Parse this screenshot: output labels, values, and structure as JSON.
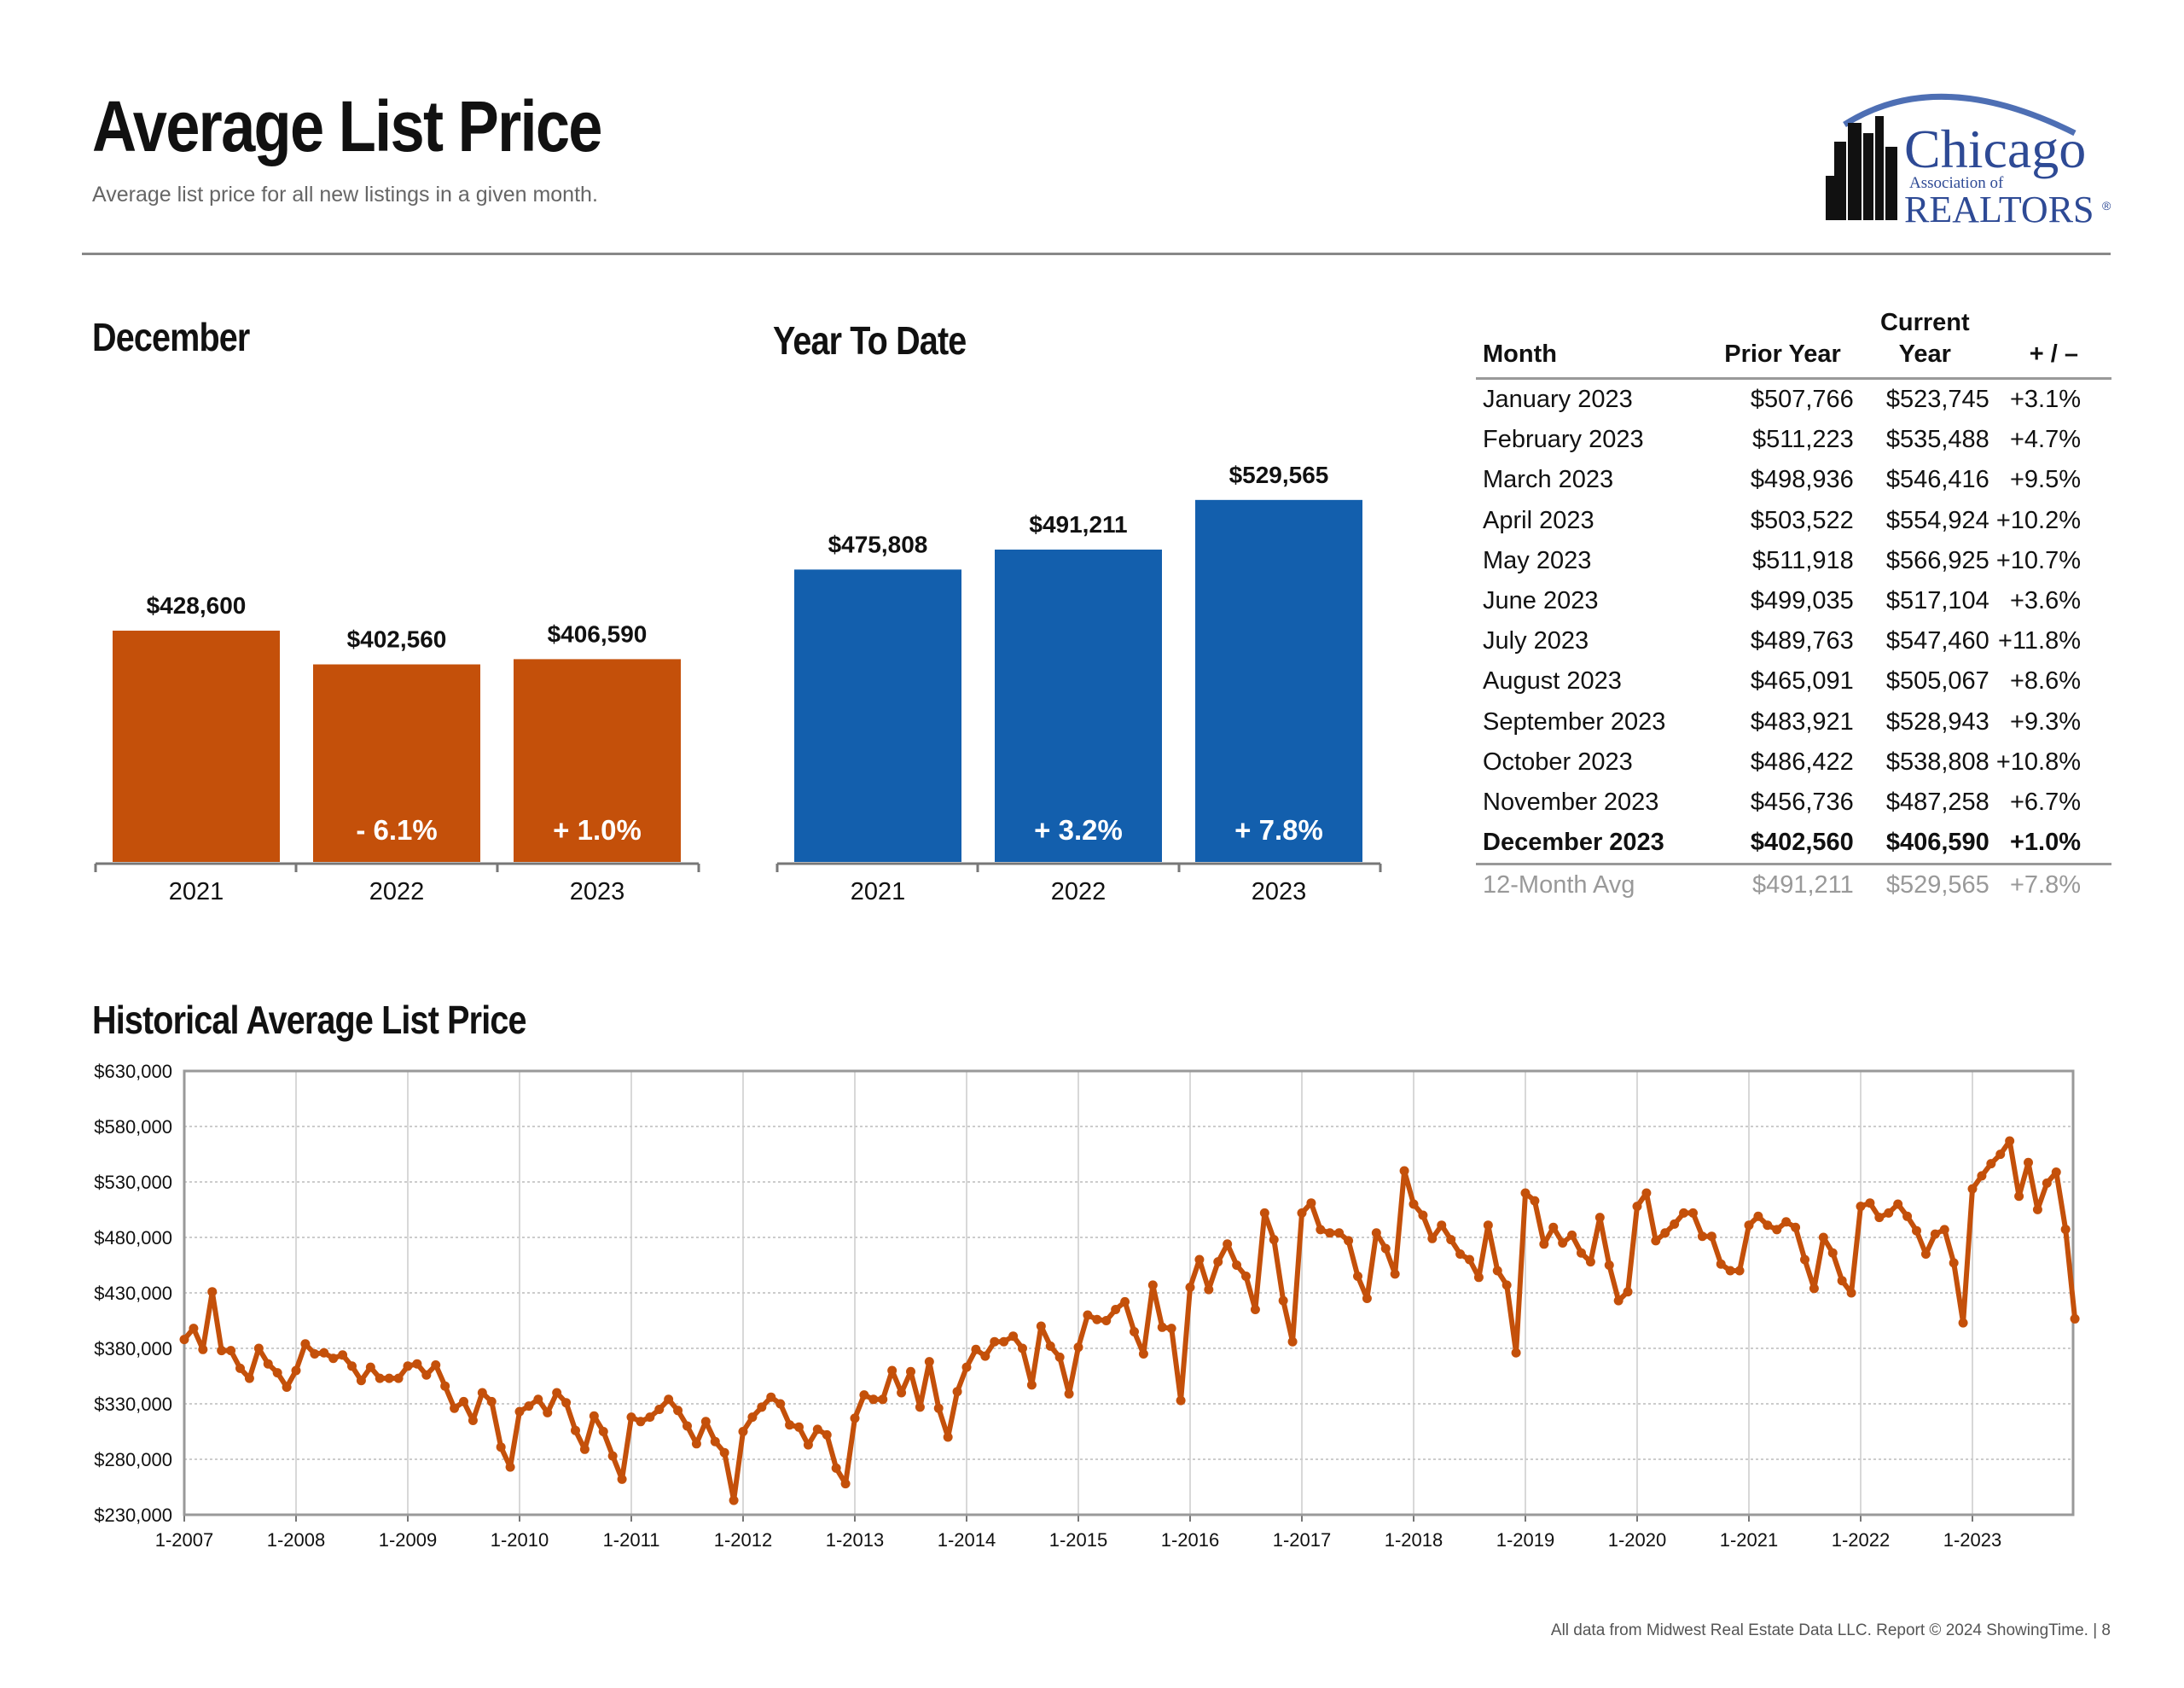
{
  "header": {
    "title": "Average List Price",
    "subtitle": "Average list price for all new listings in a given month."
  },
  "logo": {
    "line1": "Chicago",
    "line2": "Association of",
    "line3": "REALTORS",
    "mark": "®"
  },
  "sections": {
    "december": "December",
    "ytd": "Year To Date",
    "historical": "Historical Average List Price"
  },
  "table": {
    "headers": [
      "Month",
      "Prior Year",
      "Current Year",
      "+ / –"
    ],
    "rows": [
      [
        "January 2023",
        "$507,766",
        "$523,745",
        "+3.1%"
      ],
      [
        "February 2023",
        "$511,223",
        "$535,488",
        "+4.7%"
      ],
      [
        "March 2023",
        "$498,936",
        "$546,416",
        "+9.5%"
      ],
      [
        "April 2023",
        "$503,522",
        "$554,924",
        "+10.2%"
      ],
      [
        "May 2023",
        "$511,918",
        "$566,925",
        "+10.7%"
      ],
      [
        "June 2023",
        "$499,035",
        "$517,104",
        "+3.6%"
      ],
      [
        "July 2023",
        "$489,763",
        "$547,460",
        "+11.8%"
      ],
      [
        "August 2023",
        "$465,091",
        "$505,067",
        "+8.6%"
      ],
      [
        "September 2023",
        "$483,921",
        "$528,943",
        "+9.3%"
      ],
      [
        "October 2023",
        "$486,422",
        "$538,808",
        "+10.8%"
      ],
      [
        "November 2023",
        "$456,736",
        "$487,258",
        "+6.7%"
      ],
      [
        "December 2023",
        "$402,560",
        "$406,590",
        "+1.0%"
      ]
    ],
    "avg_row": [
      "12-Month Avg",
      "$491,211",
      "$529,565",
      "+7.8%"
    ]
  },
  "footer": "All data from Midwest Real Estate Data LLC. Report © 2024 ShowingTime.  |  8",
  "colors": {
    "december": "#c4500a",
    "ytd": "#135fad",
    "line": "#c4500a"
  },
  "chart_data": [
    {
      "type": "bar",
      "title": "December",
      "categories": [
        "2021",
        "2022",
        "2023"
      ],
      "values": [
        428600,
        402560,
        406590
      ],
      "value_labels": [
        "$428,600",
        "$402,560",
        "$406,590"
      ],
      "change_labels": [
        "",
        "- 6.1%",
        "+ 1.0%"
      ],
      "color": "#c4500a"
    },
    {
      "type": "bar",
      "title": "Year To Date",
      "categories": [
        "2021",
        "2022",
        "2023"
      ],
      "values": [
        475808,
        491211,
        529565
      ],
      "value_labels": [
        "$475,808",
        "$491,211",
        "$529,565"
      ],
      "change_labels": [
        "",
        "+ 3.2%",
        "+ 7.8%"
      ],
      "color": "#135fad"
    },
    {
      "type": "line",
      "title": "Historical Average List Price",
      "ylim": [
        230000,
        630000
      ],
      "y_ticks": [
        230000,
        280000,
        330000,
        380000,
        430000,
        480000,
        530000,
        580000,
        630000
      ],
      "y_tick_labels": [
        "$230,000",
        "$280,000",
        "$330,000",
        "$380,000",
        "$430,000",
        "$480,000",
        "$530,000",
        "$580,000",
        "$630,000"
      ],
      "x_tick_labels": [
        "1-2007",
        "1-2008",
        "1-2009",
        "1-2010",
        "1-2011",
        "1-2012",
        "1-2013",
        "1-2014",
        "1-2015",
        "1-2016",
        "1-2017",
        "1-2018",
        "1-2019",
        "1-2020",
        "1-2021",
        "1-2022",
        "1-2023"
      ],
      "x_start": "2007-01",
      "x_end": "2023-12",
      "grid": true,
      "series": [
        {
          "values": [
            388000,
            398000,
            379000,
            431000,
            378000,
            378000,
            362000,
            353000,
            380000,
            366000,
            358000,
            345000,
            360000,
            384000,
            375000,
            376000,
            371000,
            374000,
            364000,
            351000,
            363000,
            353000,
            353000,
            353000,
            364000,
            366000,
            356000,
            365000,
            346000,
            326000,
            332000,
            315000,
            340000,
            332000,
            291000,
            273000,
            323000,
            328000,
            334000,
            322000,
            340000,
            331000,
            306000,
            289000,
            319000,
            305000,
            283000,
            262000,
            318000,
            314000,
            318000,
            325000,
            334000,
            324000,
            310000,
            294000,
            314000,
            296000,
            286000,
            243000,
            305000,
            318000,
            327000,
            336000,
            330000,
            311000,
            309000,
            293000,
            307000,
            302000,
            272000,
            258000,
            317000,
            338000,
            334000,
            334000,
            360000,
            340000,
            359000,
            327000,
            368000,
            326000,
            300000,
            341000,
            363000,
            379000,
            373000,
            386000,
            386000,
            391000,
            380000,
            347000,
            400000,
            382000,
            372000,
            339000,
            381000,
            410000,
            406000,
            405000,
            415000,
            422000,
            395000,
            375000,
            437000,
            399000,
            398000,
            333000,
            435000,
            460000,
            433000,
            458000,
            474000,
            455000,
            445000,
            415000,
            502000,
            478000,
            423000,
            386000,
            502000,
            511000,
            487000,
            484000,
            484000,
            477000,
            445000,
            425000,
            484000,
            470000,
            447000,
            540000,
            510000,
            500000,
            479000,
            491000,
            478000,
            465000,
            460000,
            444000,
            491000,
            450000,
            437000,
            376000,
            520000,
            513000,
            474000,
            489000,
            475000,
            482000,
            466000,
            458000,
            498000,
            455000,
            423000,
            431000,
            508000,
            520000,
            477000,
            484000,
            492000,
            502000,
            502000,
            481000,
            481000,
            456000,
            450000,
            450000,
            491000,
            499000,
            491000,
            487000,
            494000,
            489000,
            460000,
            434000,
            480000,
            466000,
            441000,
            430000,
            508000,
            511000,
            498000,
            502000,
            510000,
            499000,
            486000,
            465000,
            483000,
            487000,
            457000,
            403000,
            523745,
            535488,
            546416,
            554924,
            566925,
            517104,
            547460,
            505067,
            528943,
            538808,
            487258,
            406590
          ]
        }
      ]
    }
  ]
}
